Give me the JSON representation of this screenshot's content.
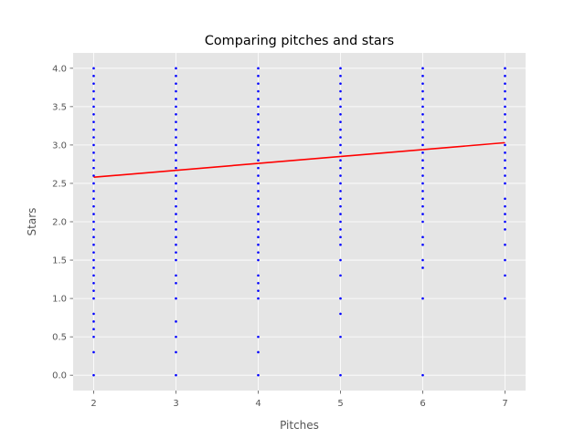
{
  "chart_data": {
    "type": "scatter",
    "title": "Comparing pitches and stars",
    "xlabel": "Pitches",
    "ylabel": "Stars",
    "xlim": [
      1.75,
      7.25
    ],
    "ylim": [
      -0.2,
      4.2
    ],
    "xticks": [
      2,
      3,
      4,
      5,
      6,
      7
    ],
    "yticks": [
      0.0,
      0.5,
      1.0,
      1.5,
      2.0,
      2.5,
      3.0,
      3.5,
      4.0
    ],
    "ytick_labels": [
      "0.0",
      "0.5",
      "1.0",
      "1.5",
      "2.0",
      "2.5",
      "3.0",
      "3.5",
      "4.0"
    ],
    "xtick_labels": [
      "2",
      "3",
      "4",
      "5",
      "6",
      "7"
    ],
    "grid": true,
    "style": "ggplot",
    "colors": {
      "background": "#e5e5e5",
      "grid": "#ffffff",
      "points": "#0000ff",
      "fit_line": "#ff0000"
    },
    "scatter_series": [
      {
        "x": 2,
        "y": [
          0.0,
          0.3,
          0.5,
          0.6,
          0.7,
          0.8,
          1.0,
          1.1,
          1.2,
          1.3,
          1.4,
          1.5,
          1.6,
          1.7,
          1.8,
          1.9,
          2.0,
          2.1,
          2.2,
          2.3,
          2.4,
          2.5,
          2.6,
          2.7,
          2.8,
          2.9,
          3.0,
          3.1,
          3.2,
          3.3,
          3.4,
          3.5,
          3.6,
          3.7,
          3.8,
          3.9,
          4.0
        ]
      },
      {
        "x": 3,
        "y": [
          0.0,
          0.3,
          0.5,
          0.7,
          1.0,
          1.2,
          1.3,
          1.5,
          1.6,
          1.7,
          1.8,
          1.9,
          2.0,
          2.1,
          2.2,
          2.3,
          2.4,
          2.5,
          2.6,
          2.7,
          2.8,
          2.9,
          3.0,
          3.1,
          3.2,
          3.3,
          3.4,
          3.5,
          3.6,
          3.7,
          3.8,
          3.9,
          4.0
        ]
      },
      {
        "x": 4,
        "y": [
          0.0,
          0.3,
          0.5,
          1.0,
          1.1,
          1.2,
          1.3,
          1.5,
          1.6,
          1.7,
          1.8,
          1.9,
          2.0,
          2.1,
          2.2,
          2.3,
          2.4,
          2.5,
          2.6,
          2.7,
          2.8,
          2.9,
          3.0,
          3.1,
          3.2,
          3.3,
          3.4,
          3.5,
          3.6,
          3.7,
          3.8,
          3.9,
          4.0
        ]
      },
      {
        "x": 5,
        "y": [
          0.0,
          0.5,
          0.8,
          1.0,
          1.3,
          1.5,
          1.7,
          1.8,
          1.9,
          2.0,
          2.1,
          2.2,
          2.3,
          2.4,
          2.5,
          2.6,
          2.7,
          2.8,
          2.9,
          3.0,
          3.1,
          3.2,
          3.3,
          3.4,
          3.5,
          3.6,
          3.7,
          3.8,
          3.9,
          4.0
        ]
      },
      {
        "x": 6,
        "y": [
          0.0,
          1.0,
          1.4,
          1.5,
          1.7,
          1.8,
          2.0,
          2.1,
          2.2,
          2.3,
          2.4,
          2.5,
          2.6,
          2.7,
          2.8,
          2.9,
          3.0,
          3.1,
          3.2,
          3.3,
          3.4,
          3.5,
          3.6,
          3.7,
          3.8,
          3.9,
          4.0
        ]
      },
      {
        "x": 7,
        "y": [
          1.0,
          1.3,
          1.5,
          1.7,
          1.9,
          2.0,
          2.1,
          2.2,
          2.3,
          2.5,
          2.6,
          2.7,
          2.8,
          2.9,
          3.0,
          3.1,
          3.2,
          3.3,
          3.4,
          3.5,
          3.6,
          3.7,
          3.8,
          3.9,
          4.0
        ]
      }
    ],
    "fit_line": {
      "x": [
        2,
        7
      ],
      "y": [
        2.58,
        3.03
      ]
    }
  }
}
